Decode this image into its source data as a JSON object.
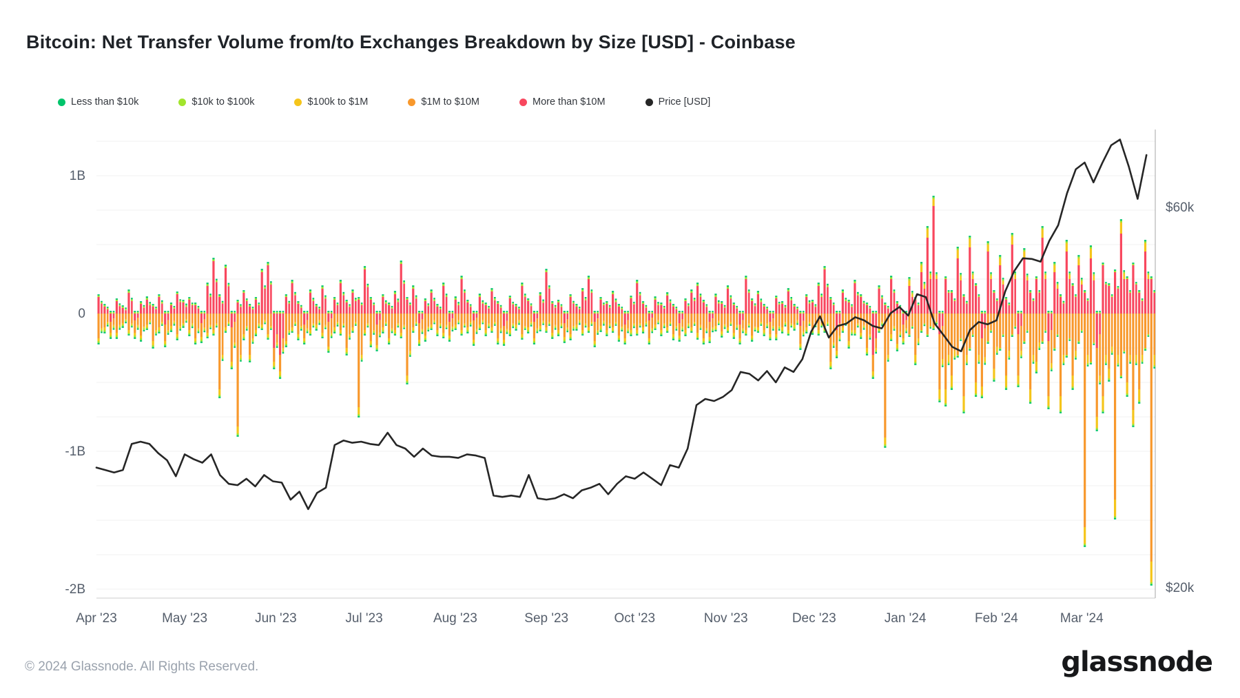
{
  "header": {
    "title": "Bitcoin: Net Transfer Volume from/to Exchanges Breakdown by Size [USD] - Coinbase"
  },
  "legend": {
    "items": [
      {
        "label": "Less than $10k",
        "color": "#00c46b"
      },
      {
        "label": "$10k to $100k",
        "color": "#a2e52d"
      },
      {
        "label": "$100k to $1M",
        "color": "#f5c51b"
      },
      {
        "label": "$1M to $10M",
        "color": "#f8982c"
      },
      {
        "label": "More than $10M",
        "color": "#f8475e"
      },
      {
        "label": "Price [USD]",
        "color": "#262626"
      }
    ]
  },
  "footer": {
    "copyright": "© 2024 Glassnode. All Rights Reserved.",
    "brand": "glassnode"
  },
  "chart_data": {
    "type": "bar",
    "subtype": "stacked-daily-bars-with-price-line",
    "title": "Bitcoin: Net Transfer Volume from/to Exchanges Breakdown by Size [USD] - Coinbase",
    "x_axis": {
      "labels": [
        "Apr '23",
        "May '23",
        "Jun '23",
        "Jul '23",
        "Aug '23",
        "Sep '23",
        "Oct '23",
        "Nov '23",
        "Dec '23",
        "Jan '24",
        "Feb '24",
        "Mar '24"
      ],
      "day_offsets": [
        0,
        30,
        61,
        91,
        122,
        153,
        183,
        214,
        244,
        275,
        306,
        335
      ],
      "total_days": 360
    },
    "y_left": {
      "units": "B USD",
      "ticks": [
        {
          "label": "1B",
          "value": 1
        },
        {
          "label": "0",
          "value": 0
        },
        {
          "label": "-1B",
          "value": -1
        },
        {
          "label": "-2B",
          "value": -2
        }
      ],
      "range": [
        -2.06,
        1.35
      ],
      "grid_step": 0.25
    },
    "y_right": {
      "units": "$k",
      "scale": "log",
      "ticks": [
        {
          "label": "$60k",
          "value": 60
        },
        {
          "label": "$20k",
          "value": 20
        }
      ]
    },
    "stack_order_from_zero": [
      "More than $10M",
      "$1M to $10M",
      "$100k to $1M",
      "$10k to $100k",
      "Less than $10k"
    ],
    "bar_series_colors": {
      "red": "#f8475e",
      "orange": "#f8982c",
      "yellow": "#f5c51b",
      "lime": "#a2e52d",
      "green": "#00c46b"
    },
    "bars": {
      "days_per_bar": 2.057,
      "columns": [
        "more_than_10M",
        "1M_to_10M",
        "100k_to_1M"
      ],
      "tip_lime": 0.013,
      "tip_green": 0.011,
      "values": [
        [
          0.12,
          -0.18,
          -0.02
        ],
        [
          0.05,
          -0.1,
          -0.02
        ],
        [
          -0.06,
          -0.08,
          -0.02
        ],
        [
          0.09,
          -0.14,
          -0.02
        ],
        [
          0.04,
          -0.07,
          -0.01
        ],
        [
          0.15,
          -0.12,
          -0.02
        ],
        [
          -0.05,
          -0.09,
          -0.02
        ],
        [
          0.07,
          -0.16,
          -0.02
        ],
        [
          0.1,
          -0.08,
          -0.02
        ],
        [
          0.05,
          -0.2,
          -0.03
        ],
        [
          0.12,
          -0.1,
          -0.02
        ],
        [
          -0.08,
          -0.12,
          -0.02
        ],
        [
          0.06,
          -0.09,
          -0.02
        ],
        [
          0.14,
          -0.15,
          -0.02
        ],
        [
          0.08,
          -0.07,
          -0.01
        ],
        [
          0.1,
          -0.12,
          -0.02
        ],
        [
          0.06,
          -0.18,
          -0.02
        ],
        [
          -0.07,
          -0.1,
          -0.02
        ],
        [
          0.2,
          -0.14,
          -0.02
        ],
        [
          0.38,
          -0.12,
          -0.02
        ],
        [
          0.12,
          -0.55,
          -0.04
        ],
        [
          0.33,
          -0.1,
          -0.02
        ],
        [
          -0.1,
          -0.25,
          -0.03
        ],
        [
          0.08,
          -0.82,
          -0.05
        ],
        [
          0.15,
          -0.15,
          -0.02
        ],
        [
          0.05,
          -0.3,
          -0.03
        ],
        [
          0.1,
          -0.12,
          -0.02
        ],
        [
          0.3,
          -0.08,
          -0.02
        ],
        [
          0.35,
          -0.15,
          -0.02
        ],
        [
          -0.25,
          -0.1,
          -0.03
        ],
        [
          -0.3,
          -0.12,
          -0.03
        ],
        [
          0.12,
          -0.2,
          -0.02
        ],
        [
          0.22,
          -0.1,
          -0.02
        ],
        [
          0.07,
          -0.15,
          -0.02
        ],
        [
          -0.08,
          -0.1,
          -0.02
        ],
        [
          0.15,
          -0.12,
          -0.02
        ],
        [
          0.05,
          -0.08,
          -0.02
        ],
        [
          0.18,
          -0.14,
          -0.02
        ],
        [
          -0.06,
          -0.18,
          -0.02
        ],
        [
          0.1,
          -0.1,
          -0.02
        ],
        [
          0.22,
          -0.12,
          -0.02
        ],
        [
          0.08,
          -0.25,
          -0.03
        ],
        [
          0.15,
          -0.1,
          -0.02
        ],
        [
          0.1,
          -0.68,
          -0.05
        ],
        [
          0.32,
          -0.12,
          -0.02
        ],
        [
          0.1,
          -0.2,
          -0.02
        ],
        [
          -0.08,
          -0.15,
          -0.02
        ],
        [
          0.12,
          -0.1,
          -0.02
        ],
        [
          0.06,
          -0.18,
          -0.02
        ],
        [
          0.14,
          -0.12,
          -0.02
        ],
        [
          0.36,
          -0.14,
          -0.02
        ],
        [
          0.1,
          -0.45,
          -0.04
        ],
        [
          0.18,
          -0.1,
          -0.02
        ],
        [
          -0.07,
          -0.12,
          -0.02
        ],
        [
          0.09,
          -0.16,
          -0.02
        ],
        [
          0.15,
          -0.08,
          -0.02
        ],
        [
          0.05,
          -0.12,
          -0.02
        ],
        [
          0.2,
          -0.14,
          -0.02
        ],
        [
          -0.06,
          -0.1,
          -0.02
        ],
        [
          0.1,
          -0.08,
          -0.02
        ],
        [
          0.25,
          -0.12,
          -0.02
        ],
        [
          0.08,
          -0.1,
          -0.02
        ],
        [
          -0.05,
          -0.14,
          -0.02
        ],
        [
          0.12,
          -0.08,
          -0.02
        ],
        [
          0.06,
          -0.12,
          -0.02
        ],
        [
          0.16,
          -0.1,
          -0.02
        ],
        [
          0.07,
          -0.18,
          -0.02
        ],
        [
          -0.09,
          -0.1,
          -0.02
        ],
        [
          0.11,
          -0.12,
          -0.02
        ],
        [
          0.05,
          -0.08,
          -0.02
        ],
        [
          0.2,
          -0.15,
          -0.02
        ],
        [
          0.09,
          -0.1,
          -0.02
        ],
        [
          -0.06,
          -0.12,
          -0.02
        ],
        [
          0.13,
          -0.09,
          -0.02
        ],
        [
          0.3,
          -0.1,
          -0.02
        ],
        [
          0.07,
          -0.14,
          -0.02
        ],
        [
          0.08,
          -0.12,
          -0.02
        ],
        [
          -0.07,
          -0.1,
          -0.02
        ],
        [
          0.12,
          -0.15,
          -0.02
        ],
        [
          0.05,
          -0.08,
          -0.02
        ],
        [
          0.16,
          -0.12,
          -0.02
        ],
        [
          0.25,
          -0.1,
          -0.02
        ],
        [
          -0.06,
          -0.14,
          -0.02
        ],
        [
          0.1,
          -0.09,
          -0.02
        ],
        [
          0.07,
          -0.12,
          -0.02
        ],
        [
          0.14,
          -0.1,
          -0.02
        ],
        [
          0.05,
          -0.16,
          -0.02
        ],
        [
          -0.08,
          -0.1,
          -0.02
        ],
        [
          0.11,
          -0.12,
          -0.02
        ],
        [
          0.22,
          -0.12,
          -0.02
        ],
        [
          0.07,
          -0.1,
          -0.02
        ],
        [
          -0.05,
          -0.13,
          -0.02
        ],
        [
          0.1,
          -0.08,
          -0.02
        ],
        [
          0.06,
          -0.12,
          -0.02
        ],
        [
          0.13,
          -0.1,
          -0.02
        ],
        [
          0.05,
          -0.15,
          -0.02
        ],
        [
          -0.07,
          -0.09,
          -0.02
        ],
        [
          0.09,
          -0.12,
          -0.02
        ],
        [
          0.15,
          -0.1,
          -0.02
        ],
        [
          0.2,
          -0.14,
          -0.03
        ],
        [
          0.08,
          -0.18,
          -0.02
        ],
        [
          -0.06,
          -0.11,
          -0.02
        ],
        [
          0.12,
          -0.09,
          -0.02
        ],
        [
          0.07,
          -0.13,
          -0.02
        ],
        [
          0.18,
          -0.1,
          -0.02
        ],
        [
          0.06,
          -0.14,
          -0.02
        ],
        [
          -0.08,
          -0.1,
          -0.02
        ],
        [
          0.25,
          -0.12,
          -0.02
        ],
        [
          0.09,
          -0.16,
          -0.02
        ],
        [
          0.14,
          -0.1,
          -0.02
        ],
        [
          0.05,
          -0.12,
          -0.02
        ],
        [
          -0.06,
          -0.09,
          -0.02
        ],
        [
          0.11,
          -0.15,
          -0.02
        ],
        [
          0.07,
          -0.1,
          -0.02
        ],
        [
          0.16,
          -0.12,
          -0.02
        ],
        [
          0.05,
          -0.08,
          -0.02
        ],
        [
          -0.09,
          -0.13,
          -0.02
        ],
        [
          0.12,
          -0.1,
          -0.02
        ],
        [
          0.08,
          -0.11,
          -0.02
        ],
        [
          0.2,
          -0.12,
          -0.02
        ],
        [
          0.32,
          -0.1,
          -0.02
        ],
        [
          0.1,
          -0.35,
          -0.03
        ],
        [
          -0.12,
          -0.15,
          -0.03
        ],
        [
          0.15,
          -0.1,
          -0.02
        ],
        [
          0.08,
          -0.2,
          -0.03
        ],
        [
          0.22,
          -0.12,
          -0.02
        ],
        [
          0.12,
          -0.14,
          -0.02
        ],
        [
          0.06,
          -0.25,
          -0.03
        ],
        [
          -0.3,
          -0.12,
          -0.03
        ],
        [
          0.18,
          -0.1,
          -0.02
        ],
        [
          0.06,
          -0.9,
          -0.05
        ],
        [
          0.25,
          -0.15,
          -0.03
        ],
        [
          0.07,
          -0.22,
          -0.03
        ],
        [
          -0.08,
          -0.1,
          -0.02
        ],
        [
          0.2,
          -0.15,
          0.04
        ],
        [
          0.1,
          -0.3,
          -0.05
        ],
        [
          0.3,
          -0.12,
          0.05
        ],
        [
          0.55,
          -0.15,
          0.06
        ],
        [
          0.78,
          -0.1,
          0.05
        ],
        [
          -0.15,
          -0.4,
          -0.07
        ],
        [
          0.25,
          -0.55,
          -0.1
        ],
        [
          0.15,
          -0.45,
          -0.08
        ],
        [
          0.4,
          -0.3,
          0.06
        ],
        [
          0.12,
          -0.6,
          -0.1
        ],
        [
          0.48,
          -0.25,
          0.06
        ],
        [
          0.2,
          -0.5,
          -0.08
        ],
        [
          -0.18,
          -0.35,
          -0.06
        ],
        [
          0.45,
          -0.2,
          0.05
        ],
        [
          0.15,
          -0.4,
          -0.07
        ],
        [
          0.35,
          -0.25,
          0.05
        ],
        [
          0.1,
          -0.45,
          -0.08
        ],
        [
          0.5,
          -0.15,
          0.06
        ],
        [
          -0.15,
          -0.3,
          -0.06
        ],
        [
          0.4,
          -0.2,
          0.05
        ],
        [
          0.15,
          -0.55,
          -0.08
        ],
        [
          0.25,
          -0.35,
          -0.06
        ],
        [
          0.55,
          -0.2,
          0.06
        ],
        [
          -0.2,
          -0.4,
          -0.07
        ],
        [
          0.3,
          -0.25,
          0.05
        ],
        [
          0.12,
          -0.6,
          -0.1
        ],
        [
          0.45,
          -0.3,
          0.06
        ],
        [
          0.2,
          -0.45,
          -0.08
        ],
        [
          0.35,
          -0.2,
          0.05
        ],
        [
          0.15,
          -1.55,
          -0.12
        ],
        [
          0.4,
          -0.35,
          0.07
        ],
        [
          -0.25,
          -0.5,
          -0.08
        ],
        [
          0.35,
          -0.6,
          -0.1
        ],
        [
          0.2,
          -0.4,
          -0.07
        ],
        [
          0.3,
          -1.35,
          -0.12
        ],
        [
          0.58,
          -0.45,
          0.08
        ],
        [
          0.25,
          -0.5,
          -0.08
        ],
        [
          0.35,
          -0.7,
          -0.1
        ],
        [
          0.15,
          -0.55,
          -0.08
        ],
        [
          0.45,
          -0.25,
          0.06
        ],
        [
          0.25,
          -1.8,
          -0.15
        ]
      ]
    },
    "price": {
      "name": "Price [USD]",
      "days_per_point": 3,
      "units": "$k",
      "values": [
        28.3,
        28.1,
        27.9,
        28.1,
        30.3,
        30.5,
        30.3,
        29.5,
        28.9,
        27.6,
        29.4,
        29.0,
        28.7,
        29.4,
        27.7,
        27.0,
        26.9,
        27.4,
        26.8,
        27.7,
        27.2,
        27.1,
        25.8,
        26.4,
        25.1,
        26.3,
        26.7,
        30.2,
        30.6,
        30.4,
        30.5,
        30.3,
        30.2,
        31.3,
        30.2,
        29.9,
        29.2,
        29.9,
        29.3,
        29.2,
        29.2,
        29.1,
        29.4,
        29.3,
        29.1,
        26.1,
        26.0,
        26.1,
        26.0,
        27.7,
        25.9,
        25.8,
        25.9,
        26.2,
        25.9,
        26.5,
        26.7,
        27.0,
        26.2,
        27.0,
        27.6,
        27.4,
        27.9,
        27.4,
        26.9,
        28.5,
        28.3,
        29.9,
        33.9,
        34.5,
        34.3,
        34.7,
        35.4,
        37.3,
        37.1,
        36.4,
        37.4,
        36.2,
        37.8,
        37.3,
        38.7,
        41.9,
        43.8,
        41.2,
        42.6,
        42.9,
        43.7,
        43.3,
        42.6,
        42.3,
        44.2,
        45.0,
        43.9,
        46.7,
        46.3,
        42.9,
        41.5,
        40.1,
        39.6,
        42.1,
        43.1,
        42.8,
        43.3,
        47.1,
        49.9,
        51.8,
        51.7,
        51.3,
        54.5,
        57.0,
        62.5,
        67.0,
        68.3,
        64.5,
        68.2,
        71.8,
        73.0,
        67.5,
        61.5,
        69.8
      ]
    },
    "render": {
      "echo_scale": 0.6,
      "echo_cap_red": 0.25,
      "echo_cap_orange": 0.3,
      "echo_yellow_scale": 0.5
    },
    "grid": true,
    "legend_position": "top"
  }
}
